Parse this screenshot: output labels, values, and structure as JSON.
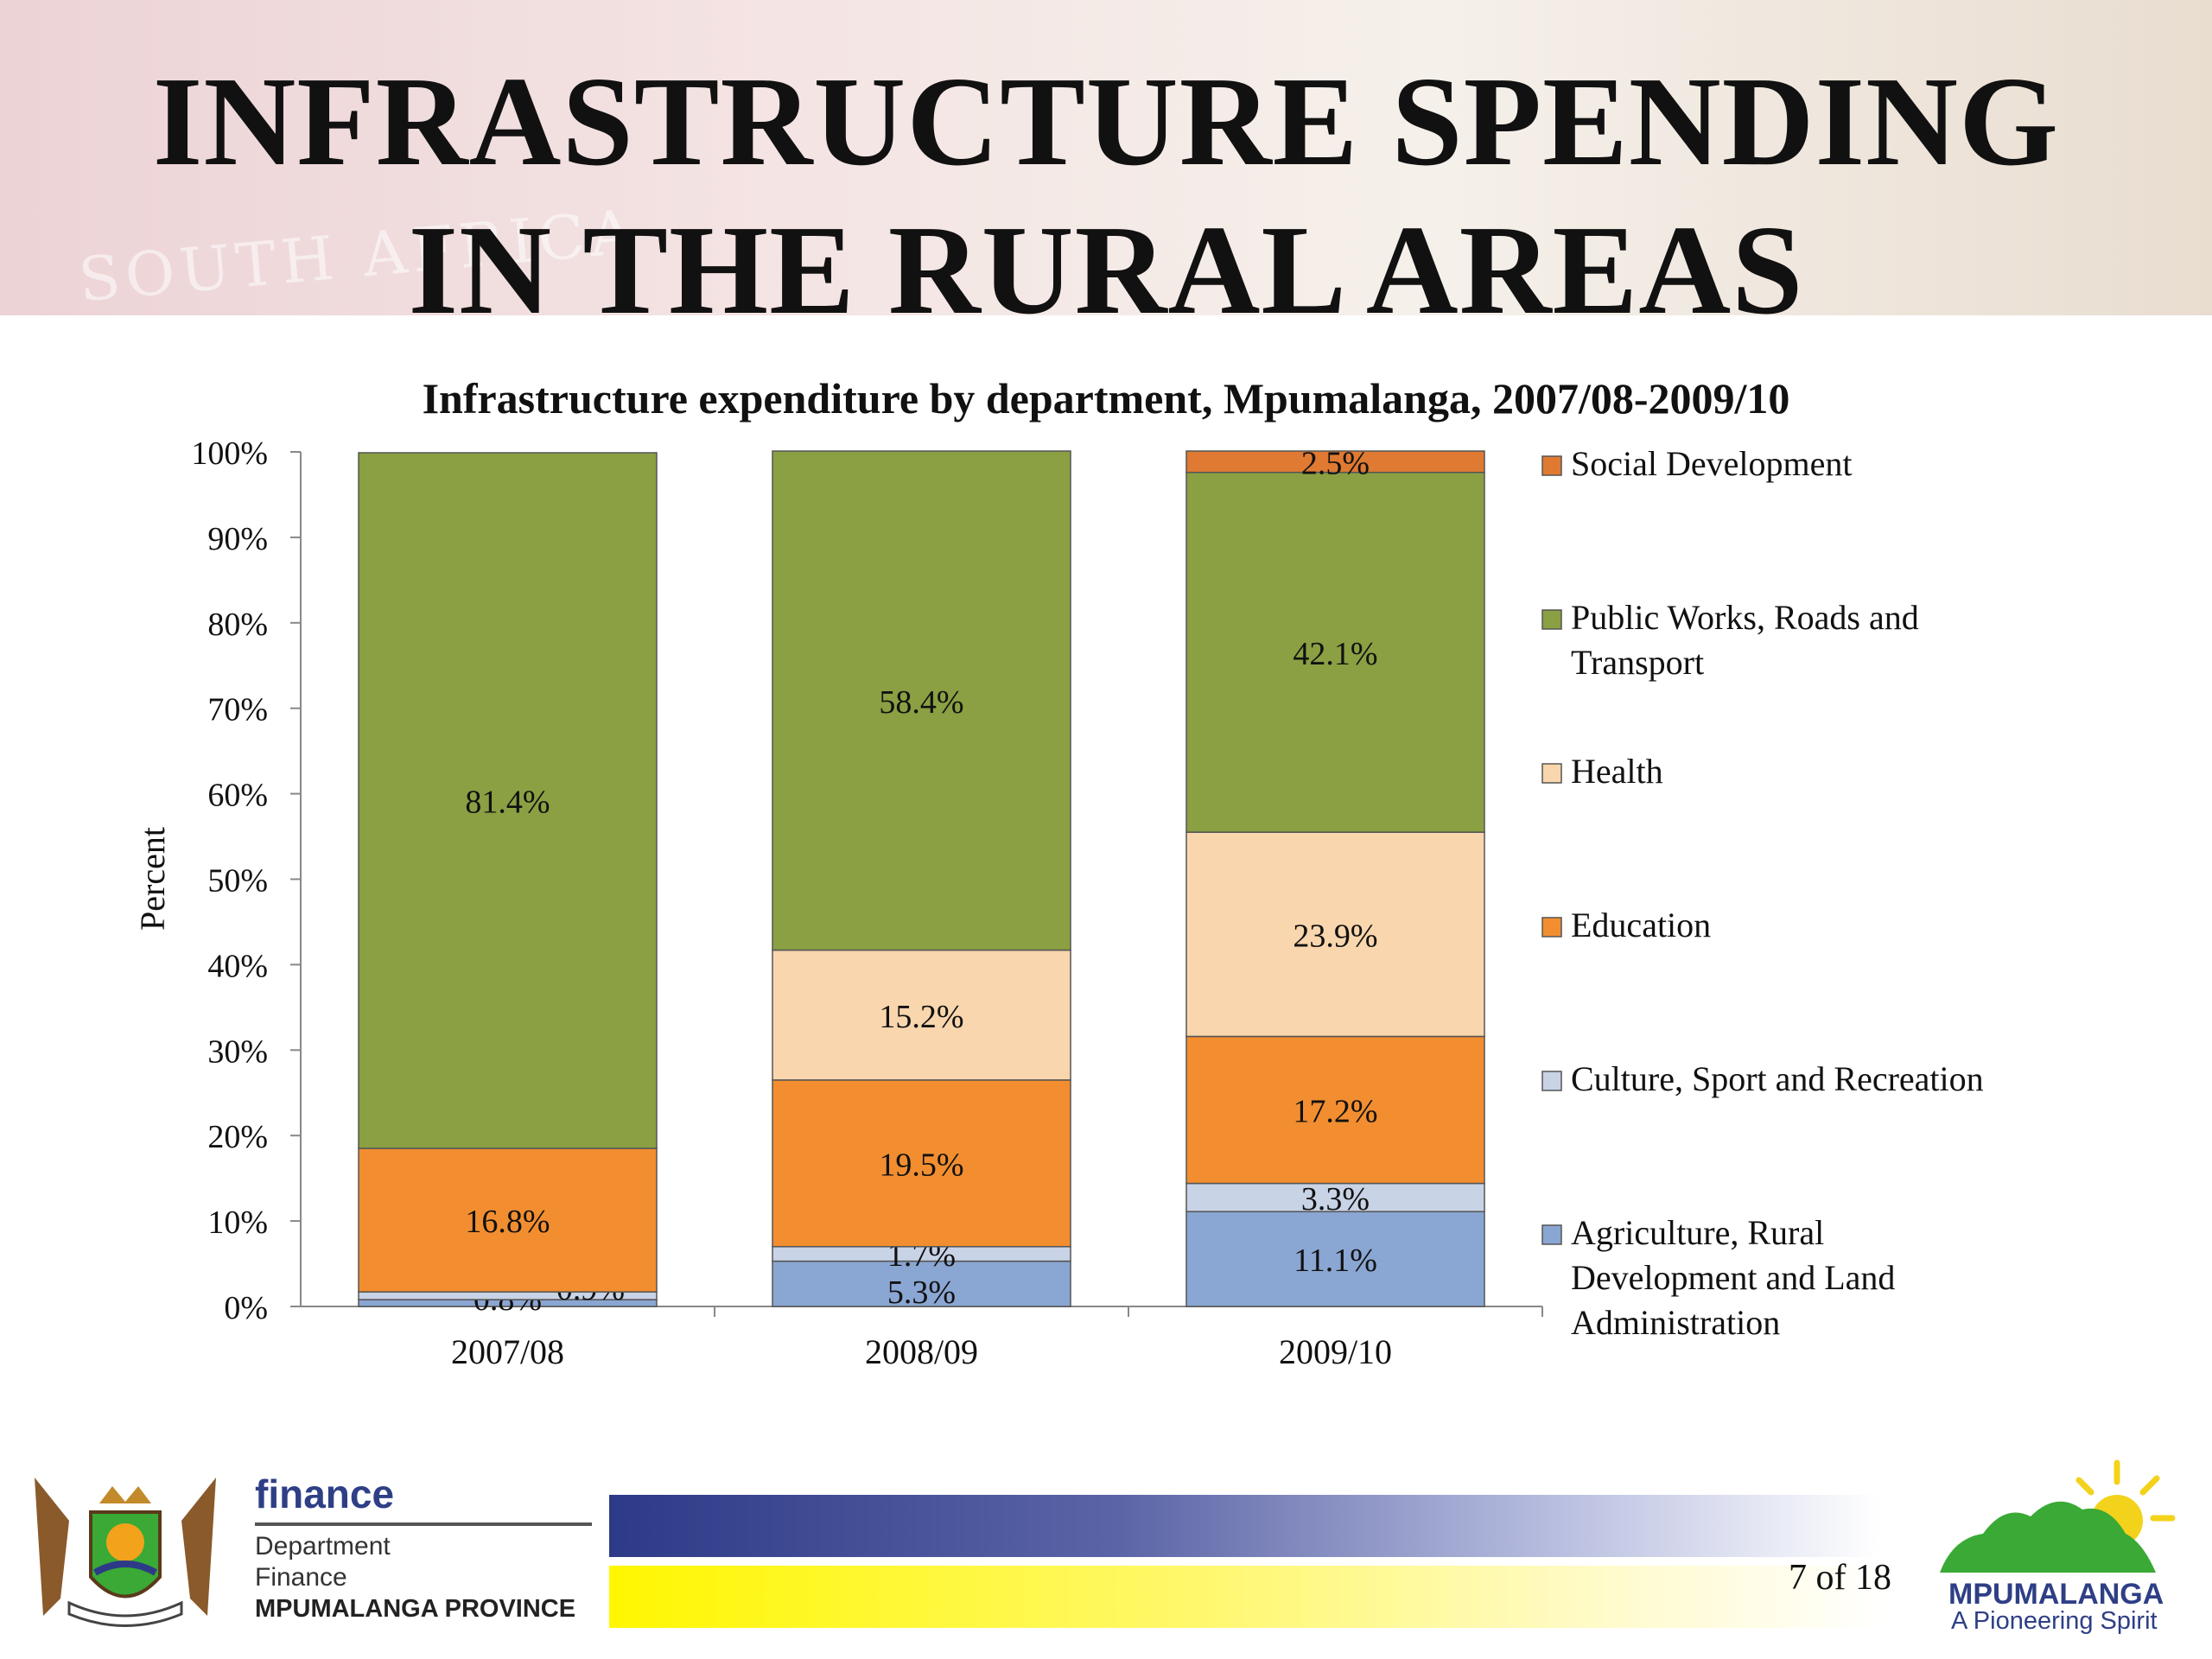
{
  "slide": {
    "title_line1": "INFRASTRUCTURE SPENDING",
    "title_line2": "IN THE RURAL AREAS",
    "banner_watermark": "SOUTH AFRICA",
    "page_indicator": "7 of 18"
  },
  "footer": {
    "dept_word": "finance",
    "dept_line1": "Department",
    "dept_line2": "Finance",
    "province": "MPUMALANGA PROVINCE",
    "brand": "MPUMALANGA",
    "tagline": "A Pioneering Spirit",
    "colors": {
      "navy": "#2e3f86",
      "yellow": "#fff700",
      "green": "#3aa935",
      "sun": "#f3d21b"
    }
  },
  "chart_data": {
    "type": "bar",
    "stacked": true,
    "title": "Infrastructure expenditure by department, Mpumalanga, 2007/08-2009/10",
    "xlabel": "",
    "ylabel": "Percent",
    "ylim": [
      0,
      100
    ],
    "yticks": [
      "0%",
      "10%",
      "20%",
      "30%",
      "40%",
      "50%",
      "60%",
      "70%",
      "80%",
      "90%",
      "100%"
    ],
    "categories": [
      "2007/08",
      "2008/09",
      "2009/10"
    ],
    "legend_position": "right",
    "series": [
      {
        "name": "Agriculture, Rural Development and Land Administration",
        "values": [
          0.8,
          5.3,
          11.1
        ],
        "labels": [
          "0.8%",
          "5.3%",
          "11.1%"
        ],
        "color": "#8aa6d2"
      },
      {
        "name": "Culture, Sport and Recreation",
        "values": [
          0.9,
          1.7,
          3.3
        ],
        "labels": [
          "0.9%",
          "1.7%",
          "3.3%"
        ],
        "color": "#c8d3e6"
      },
      {
        "name": "Education",
        "values": [
          16.8,
          19.5,
          17.2
        ],
        "labels": [
          "16.8%",
          "19.5%",
          "17.2%"
        ],
        "color": "#f28e30"
      },
      {
        "name": "Health",
        "values": [
          0,
          15.2,
          23.9
        ],
        "labels": [
          "",
          "15.2%",
          "23.9%"
        ],
        "color": "#f9d6ad"
      },
      {
        "name": "Public Works, Roads and Transport",
        "values": [
          81.4,
          58.4,
          42.1
        ],
        "labels": [
          "81.4%",
          "58.4%",
          "42.1%"
        ],
        "color": "#8aa043"
      },
      {
        "name": "Social Development",
        "values": [
          0,
          0,
          2.5
        ],
        "labels": [
          "",
          "",
          "2.5%"
        ],
        "color": "#e07a32"
      }
    ],
    "legend_lines": [
      [
        "Social Development"
      ],
      [
        "Public Works, Roads and",
        "Transport"
      ],
      [
        "Health"
      ],
      [
        "Education"
      ],
      [
        "Culture, Sport and Recreation"
      ],
      [
        "Agriculture, Rural",
        "Development and Land",
        "Administration"
      ]
    ]
  }
}
